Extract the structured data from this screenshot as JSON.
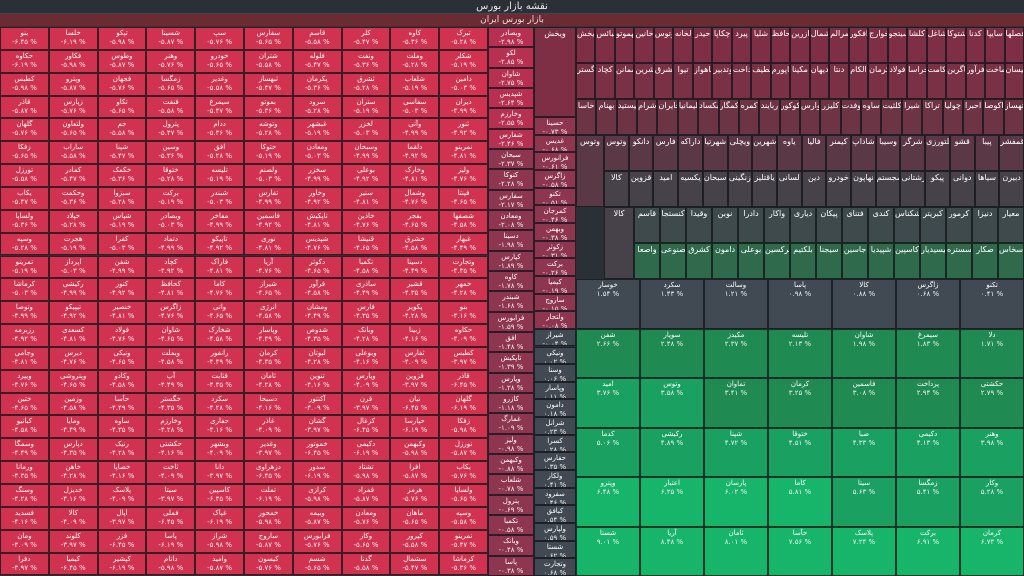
{
  "window": {
    "title": "نقشه بازار بورس",
    "subtitle": "بازار بورس ایران"
  },
  "colors": {
    "neg_strong": "#d1324f",
    "neg_mid": "#b73052",
    "neg_soft": "#8e3650",
    "neutral": "#414a52",
    "pos_soft": "#1f8a52",
    "pos_mid": "#1aa161",
    "pos_strong": "#16b56a"
  },
  "left_grid": {
    "names": [
      "بنو",
      "حکاوه",
      "کطبس",
      "قاذر",
      "گلهان",
      "زفکا",
      "تورزل",
      "یکاب",
      "ولساپا",
      "وسپه",
      "تمرینو",
      "کرماشا",
      "وتوصا",
      "رزبرمه",
      "وجامی",
      "ویپرد",
      "ختین",
      "کبانیو",
      "وسمگا",
      "ورمانا",
      "وسنگ",
      "فسدید",
      "ومان",
      "دفرا",
      "خلسا",
      "فکاور",
      "وپترو",
      "زپارس",
      "ولتعاون",
      "ساراب",
      "کمادر",
      "وحکمت",
      "خپلاد",
      "هجرت",
      "اپرداز",
      "رکیشی",
      "تیپیکو",
      "کسعدی",
      "دیرس",
      "وپتروشی",
      "وزمین",
      "ومایا",
      "دپارس",
      "خاهن",
      "خدیزل",
      "کالا",
      "کلوند",
      "کیمیا",
      "تپکو",
      "وطوس",
      "فجهان",
      "تکاو",
      "جم",
      "شپنا",
      "خکمک",
      "سبزوا",
      "شپاس",
      "کفرا",
      "شفن",
      "کنور",
      "خنصیر",
      "فولاد",
      "ونیکی",
      "وکادو",
      "حآسا",
      "ساوه",
      "رنیک",
      "خصاپا",
      "پلاسک",
      "اپال",
      "فزر",
      "کپشیر",
      "شسینا",
      "وهنر",
      "زمگسا",
      "فنفت",
      "پترول",
      "وسین",
      "ختوقا",
      "برکت",
      "وبصادر",
      "دتماد",
      "کچاد",
      "کحافظ",
      "زاگرس",
      "شاوان",
      "وبملت",
      "آپ",
      "خگستر",
      "وخارزم",
      "حکشتی",
      "ثاخت",
      "سیتا",
      "فملی",
      "پاسا",
      "داتام",
      "سپ",
      "خودرو",
      "وغدیر",
      "سیمرغ",
      "ددام",
      "افق",
      "تلیسه",
      "شبندر",
      "مفاخر",
      "تاپیکو",
      "فاراک",
      "کاما",
      "واتی",
      "شخارک",
      "رانفور",
      "قثابت",
      "سکرد",
      "حفاری",
      "وبشهر",
      "دانا",
      "کاسپین",
      "غپاک",
      "شراز",
      "وامید",
      "سفارس",
      "شتران",
      "ثبهساز",
      "بموتو",
      "وتوشه",
      "حتوکا",
      "ولصنم",
      "تفارس",
      "فاسمین",
      "نوری",
      "آریا",
      "شیراز",
      "انرژی",
      "وپاسار",
      "کرمان",
      "ثامان",
      "دسبحا",
      "غاذر",
      "وغدیر",
      "دزهراوی",
      "تملت",
      "خمحور",
      "ساروج",
      "کیسون",
      "قاسم",
      "فلوله",
      "پکرمان",
      "سرود",
      "غبشهر",
      "ومعادن",
      "سخزر",
      "وخاور",
      "تاپکیش",
      "شپدیس",
      "دکوثر",
      "فرآور",
      "ومشان",
      "شدوص",
      "لبوتان",
      "تنوین",
      "آکنتور",
      "گشان",
      "خموتور",
      "سدور",
      "کرازی",
      "وبیمه",
      "فرابورس",
      "شسم",
      "کلر",
      "ونفت",
      "ثشرق",
      "ستران",
      "لخزر",
      "وسبحان",
      "بوعلی",
      "سنیر",
      "خاذین",
      "قنیشا",
      "تکمبا",
      "ساذری",
      "فارس",
      "وبانک",
      "وبوعلی",
      "وپارس",
      "قرن",
      "کزغال",
      "دکیمی",
      "تشتاد",
      "فمراد",
      "ومعادن",
      "وکار",
      "گدنا",
      "کاوه",
      "وملت",
      "شلعاب",
      "سفاسی",
      "وآتی",
      "دلقما",
      "وخارک",
      "وشمال",
      "بفجر",
      "خشرق",
      "دسینا",
      "قشیر",
      "پکویر",
      "زبینا",
      "ثفارس",
      "قزوین",
      "نیان",
      "حپارسا",
      "وکبهمن",
      "افرا",
      "هرمز",
      "ماهان",
      "کپرور",
      "سشمال",
      "تبرک",
      "شکلر",
      "دامین",
      "دیران",
      "ثنور",
      "نمرینو",
      "ولیز",
      "فپنتا",
      "شصفها",
      "غبهار",
      "وتجارت",
      "خمهر"
    ],
    "pcts": [
      "-۶.۴۵ %",
      "-۶.۱۹ %",
      "-۵.۹۸ %",
      "-۵.۸۷ %",
      "-۵.۷۶ %",
      "-۵.۶۵ %",
      "-۵.۵۸ %",
      "-۵.۴۷ %",
      "-۵.۳۶ %",
      "-۵.۲۸ %",
      "-۵.۱۹ %",
      "-۵.۰۳ %",
      "-۴.۹۹ %",
      "-۴.۹۲ %",
      "-۴.۸۱ %",
      "-۴.۷۶ %",
      "-۴.۶۵ %",
      "-۴.۵۸ %",
      "-۴.۴۹ %",
      "-۴.۳۵ %",
      "-۴.۲۸ %",
      "-۴.۱۶ %",
      "-۴.۰۹ %",
      "-۳.۹۷ %"
    ]
  },
  "middle_columns": {
    "col1_names": [
      "وبصادر",
      "لکو",
      "شاوان",
      "شپدیس",
      "وخارزم",
      "شفارس",
      "سبحان",
      "کتوکا",
      "سفارس",
      "ومعادن",
      "دسینا",
      "کپارس",
      "کاوه",
      "شبندر",
      "فرابورس",
      "افق",
      "تاپکیش",
      "وپارس",
      "کازرو",
      "غمارگ",
      "ولیز",
      "وکبهمن",
      "شلعاب",
      "پترول",
      "تکمبا",
      "وبانک",
      "پاسا"
    ],
    "col1_pcts": [
      "-۲.۹۸ %",
      "-۲.۸۵ %",
      "-۲.۷۵ %",
      "-۲.۶۴ %",
      "-۲.۵۵ %",
      "-۲.۴۶ %",
      "-۲.۳۷ %",
      "-۲.۲۸ %",
      "-۲.۱۷ %",
      "-۲.۰۸ %",
      "-۱.۹۸ %",
      "-۱.۸۹ %",
      "-۱.۷۸ %",
      "-۱.۶۸ %",
      "-۱.۵۹ %",
      "-۱.۴۸ %",
      "-۱.۳۹ %",
      "-۱.۲۸ %",
      "-۱.۱۸ %",
      "-۱.۰۹ %",
      "-۰.۹۸ %",
      "-۰.۸۸ %",
      "-۰.۷۸ %",
      "-۰.۶۹ %",
      "-۰.۵۸ %",
      "-۰.۴۸ %",
      "-۰.۳۸ %"
    ],
    "col2_names": [
      "حسینا",
      "غدیس",
      "فرانورس",
      "زاگرس",
      "تکنو",
      "کمرجان",
      "وبهمن",
      "زکوثر",
      "برکت",
      "کیمیا",
      "ساروج",
      "ولتجار",
      "شیراز",
      "ونیکی",
      "وسنا",
      "وپاسار",
      "دامون",
      "شرانل",
      "کسرا",
      "حفارس",
      "ولکار",
      "سفرود",
      "کبافق",
      "ولپارس",
      "شستا",
      "وتجارت"
    ],
    "col2_pcts": [
      "-۰.۷۳ %",
      "-۰.۶۸ %",
      "-۰.۶۱ %",
      "-۰.۵۸ %",
      "-۰.۵۱ %",
      "-۰.۴۶ %",
      "-۰.۳۸ %",
      "-۰.۳۱ %",
      "-۰.۲۶ %",
      "-۰.۱۹ %",
      "-۰.۱۵ %",
      "-۰.۰۸ %",
      "-۰.۰۴ %",
      "۰.۰۲ %",
      "۰.۰۶ %",
      "۰.۱۱ %",
      "۰.۱۸ %",
      "۰.۲۳ %",
      "۰.۲۸ %",
      "۰.۳۵ %",
      "۰.۴۱ %",
      "۰.۴۶ %",
      "۰.۵۴ %",
      "۰.۵۹ %",
      "۰.۶۲ %",
      "۰.۶۸ %"
    ]
  },
  "top_right_tiles": {
    "row1": [
      "فصلها",
      "سایپا",
      "کدنا",
      "شتوکا",
      "شاغل",
      "کلشا",
      "سیتجو",
      "بکخوارج",
      "رافکور",
      "مرالم",
      "وشمال",
      "وازرین",
      "وحافظ",
      "شلیا",
      "پیرد",
      "چکاپا",
      "حیدر",
      "لخانه",
      "وتوس",
      "خانین",
      "پهموتو",
      "خبائس",
      "ویخش"
    ],
    "row2": [
      "ونیسان",
      "سماخت",
      "فرآور",
      "فکاگرین",
      "فیکامت",
      "خراسا",
      "فولاد",
      "حکرمان",
      "الکام",
      "دنتا",
      "کدیهان",
      "مکینا",
      "شاپورم",
      "لطیف",
      "پرداخت",
      "وتدبیر",
      "فاهواز",
      "تیوا",
      "کشرق",
      "قشرین",
      "سمانن",
      "کچاد",
      "وگستر"
    ],
    "row3": [
      "تهساز",
      "اکوصا",
      "احبرا",
      "چولیا",
      "تراکا",
      "شیرا",
      "آکلثیت",
      "ساوه",
      "وفدت",
      "کلیزر",
      "وارس",
      "کوکور",
      "ربایند",
      "کمره",
      "کمگار",
      "بکساد",
      "سلیمانیا",
      "سجایران",
      "شرام",
      "کیستید",
      "بهنام",
      "خاسا"
    ],
    "row4": [
      "قمفشر",
      "پیبا",
      "قشو",
      "کلتورزی",
      "شرگر",
      "وسیبا",
      "شاداپ",
      "کیمنر",
      "فالیا",
      "یاوه",
      "شهرین",
      "ویچلی",
      "شهرتیا",
      "داراکه",
      "فارس",
      "دانکو",
      "وتوس"
    ],
    "row5": [
      "دبیرن",
      "سیاها",
      "دوانی",
      "پیکو",
      "رشتانی",
      "سجستم",
      "نهاپون",
      "خودرو",
      "دین",
      "لسانی",
      "یاقتلیز",
      "زنگینی",
      "سبحان",
      "یکسیه",
      "امید",
      "قزوین",
      "کالا"
    ],
    "row6": [
      "معیار",
      "دنیزا",
      "کرمور",
      "کبریتر",
      "شکناس",
      "کندی",
      "فتنای",
      "پیکان",
      "دیاری",
      "واکار",
      "دادرا",
      "نوبن",
      "وقیدا",
      "کنستجا",
      "قاسم"
    ],
    "row7": [
      "سخاس",
      "صکار",
      "سستره",
      "تکیسیدیار",
      "کاسپین",
      "شپیدیا",
      "جاسین",
      "سیجنا",
      "بلکتیم",
      "فرکسین",
      "بوعلی",
      "دامون",
      "کشرق",
      "مصنوعی",
      "واصعا"
    ]
  },
  "green_area": {
    "names": [
      "تکنو",
      "زاگرس",
      "کالا",
      "پاسا",
      "وسالت",
      "سکرد",
      "خوسار",
      "دلا",
      "سیمرغ",
      "شاوان",
      "تلیسه",
      "مکیدز",
      "سوپار",
      "شفن",
      "حکشتی",
      "پرداخت",
      "فاسمین",
      "کرمان",
      "تماوان",
      "وتوس",
      "امید",
      "وهنر",
      "دکیمی",
      "صبا",
      "ختوقا",
      "شپنا",
      "رکیشی",
      "کدما",
      "وکار",
      "زمگسا",
      "سیتا",
      "کاما",
      "پارسان",
      "اعتبار",
      "وپترو",
      "کرمان",
      "برکت",
      "پلاسک",
      "حآسا",
      "ثامان",
      "آریا",
      "شستا"
    ],
    "pcts": [
      "۰.۴۱ %",
      "۰.۶۸ %",
      "۰.۸۸ %",
      "۰.۹۸ %",
      "۱.۲۱ %",
      "۱.۴۳ %",
      "۱.۵۴ %",
      "۱.۷۱ %",
      "۱.۸۳ %",
      "۱.۹۸ %",
      "۲.۱۳ %",
      "۲.۳۷ %",
      "۲.۴۸ %",
      "۲.۶۶ %",
      "۲.۷۹ %",
      "۲.۹۴ %",
      "۳.۰۸ %",
      "۳.۲۵ %",
      "۳.۴۱ %",
      "۳.۵۸ %",
      "۳.۷۶ %",
      "۳.۹۸ %",
      "۴.۱۳ %",
      "۴.۳۳ %",
      "۴.۵۱ %",
      "۴.۷۲ %",
      "۴.۸۹ %",
      "۵.۰۶ %",
      "۵.۲۸ %",
      "۵.۴۱ %",
      "۵.۶۳ %",
      "۵.۸۱ %",
      "۶.۰۲ %",
      "۶.۲۵ %",
      "۶.۴۸ %",
      "۶.۷۴ %",
      "۶.۹۱ %",
      "۷.۲۴ %",
      "۷.۵۶ %",
      "۸.۰۱ %",
      "۸.۴۸ %",
      "۹.۰۱ %"
    ]
  }
}
